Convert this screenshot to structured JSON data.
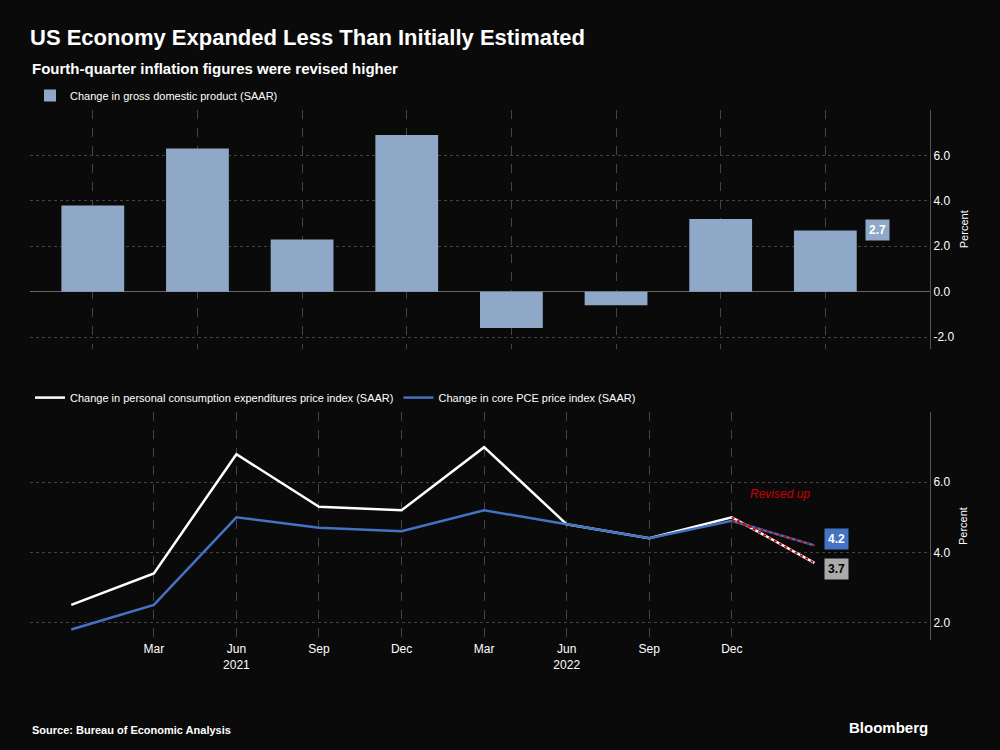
{
  "chart_data": [
    {
      "type": "bar",
      "title": "US Economy Expanded Less Than Initially Estimated",
      "subtitle": "Fourth-quarter inflation figures were revised higher",
      "categories": [
        null,
        null,
        null,
        null,
        null,
        null,
        null,
        null
      ],
      "series": [
        {
          "name": "Change in gross domestic product (SAAR)",
          "color": "#8fa8c8",
          "values": [
            3.8,
            6.3,
            2.3,
            6.9,
            -1.6,
            -0.6,
            3.2,
            2.7
          ]
        }
      ],
      "ylabel": "Percent",
      "ylim": [
        -2.5,
        8.0
      ],
      "yticks": [
        {
          "value": -2.0,
          "label": "-2.0"
        },
        {
          "value": 0.0,
          "label": "0.0"
        },
        {
          "value": 2.0,
          "label": "2.0"
        },
        {
          "value": 4.0,
          "label": "4.0"
        },
        {
          "value": 6.0,
          "label": "6.0"
        }
      ],
      "grid": true,
      "legend": "upper left",
      "tick_labels": "y",
      "annotations": [
        {
          "text": "2.7",
          "x": 7,
          "y": 2.7,
          "color": "#8fa8c8"
        }
      ]
    },
    {
      "type": "line",
      "categories": [
        null,
        "Mar",
        "Jun\n2021",
        "Sep",
        "Dec",
        "Mar",
        "Jun\n2022",
        "Sep",
        "Dec",
        null
      ],
      "series": [
        {
          "name": "Change in personal consumption expenditures price index (SAAR)",
          "color": "#ffffff",
          "values": [
            2.5,
            3.4,
            6.8,
            5.3,
            5.2,
            7.0,
            4.8,
            4.4,
            5.0,
            3.7
          ]
        },
        {
          "name": "Change in core PCE price index (SAAR)",
          "color": "#4472c4",
          "values": [
            1.8,
            2.5,
            5.0,
            4.7,
            4.6,
            5.2,
            4.8,
            4.4,
            4.9,
            4.2
          ]
        },
        {
          "color": "#cc0000",
          "line_style": "dotted",
          "values": [
            null,
            null,
            null,
            null,
            null,
            null,
            null,
            null,
            5.0,
            3.7
          ]
        },
        {
          "color": "#cc0000",
          "line_style": "dotted",
          "values": [
            null,
            null,
            null,
            null,
            null,
            null,
            null,
            null,
            4.9,
            4.2
          ]
        }
      ],
      "ylabel": "Percent",
      "ylim": [
        1.5,
        8.0
      ],
      "yticks": [
        {
          "value": 2.0,
          "label": "2.0"
        },
        {
          "value": 4.0,
          "label": "4.0"
        },
        {
          "value": 6.0,
          "label": "6.0"
        }
      ],
      "grid": true,
      "legend": "upper left",
      "annotations": [
        {
          "text": "4.2",
          "x": 9,
          "y": 4.2,
          "color": "#4472c4"
        },
        {
          "text": "3.7",
          "x": 9,
          "y": 3.7,
          "color": "#aaaaaa"
        },
        {
          "text": "Revised up",
          "x": 8.2,
          "y": 5.4,
          "color": "#cc0000"
        },
        {
          "text": "Source: Bureau of Economic Analysis"
        },
        {
          "text": "Bloomberg"
        }
      ]
    }
  ]
}
